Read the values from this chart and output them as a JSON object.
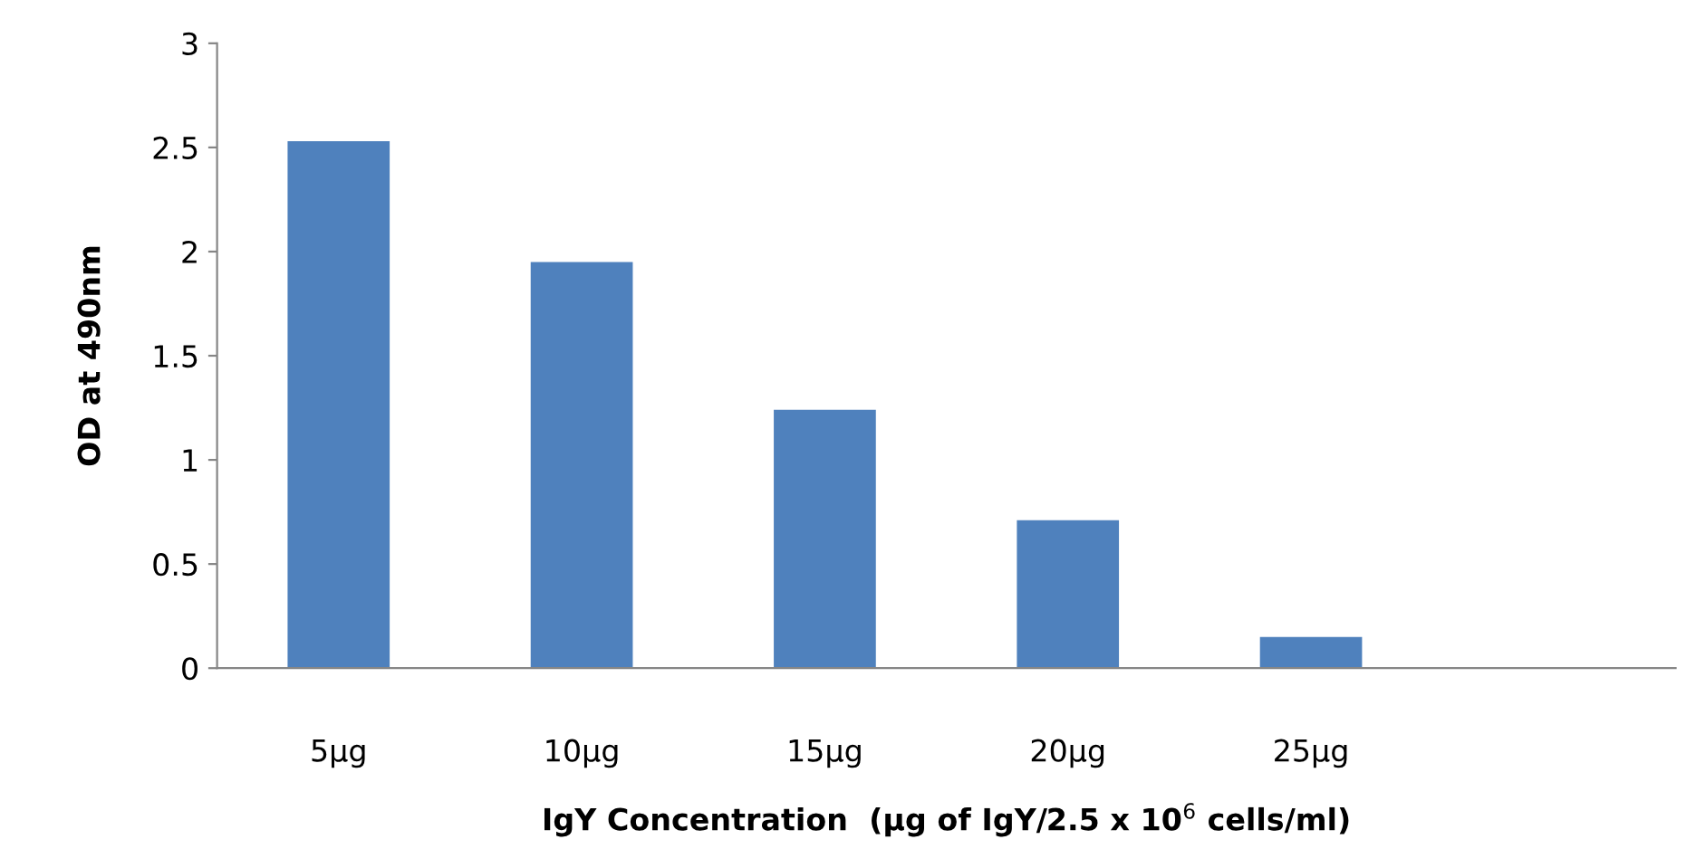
{
  "chart_data": {
    "type": "bar",
    "categories": [
      "5μg",
      "10μg",
      "15μg",
      "20μg",
      "25μg",
      null
    ],
    "values": [
      2.53,
      1.95,
      1.24,
      0.71,
      0.15,
      null
    ],
    "color": "#4f81bd",
    "xlabel": "IgY Concentration  (μg of IgY/2.5 x 10$^{6}$ cells/ml)",
    "ylabel": "OD at 490nm",
    "ylim": [
      0,
      3
    ],
    "yticks": [
      0,
      0.5,
      1,
      1.5,
      2,
      2.5,
      3
    ],
    "grid": false,
    "legend": false
  }
}
